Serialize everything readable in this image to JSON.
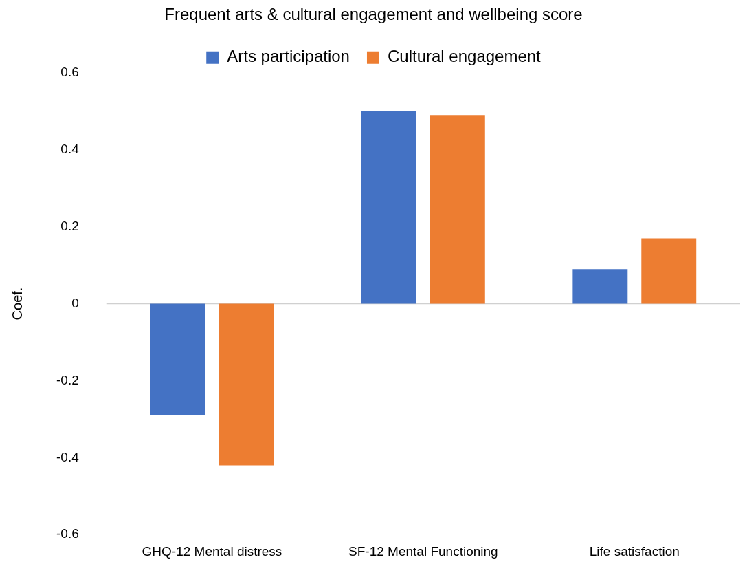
{
  "chart_data": {
    "type": "bar",
    "title": "Frequent arts & cultural engagement and wellbeing score",
    "ylabel": "Coef.",
    "categories": [
      "GHQ-12 Mental distress",
      "SF-12 Mental Functioning",
      "Life satisfaction"
    ],
    "series": [
      {
        "name": "Arts participation",
        "color": "#4472c4",
        "values": [
          -0.29,
          0.5,
          0.09
        ]
      },
      {
        "name": "Cultural engagement",
        "color": "#ed7d31",
        "values": [
          -0.42,
          0.49,
          0.17
        ]
      }
    ],
    "ylim": [
      -0.6,
      0.6
    ],
    "yticks": [
      -0.6,
      -0.4,
      -0.2,
      0,
      0.2,
      0.4,
      0.6
    ],
    "grid": false,
    "ref_lines": [
      {
        "axis": "y",
        "value": 0,
        "color": "#d0d0d0"
      }
    ],
    "legend": "top"
  }
}
